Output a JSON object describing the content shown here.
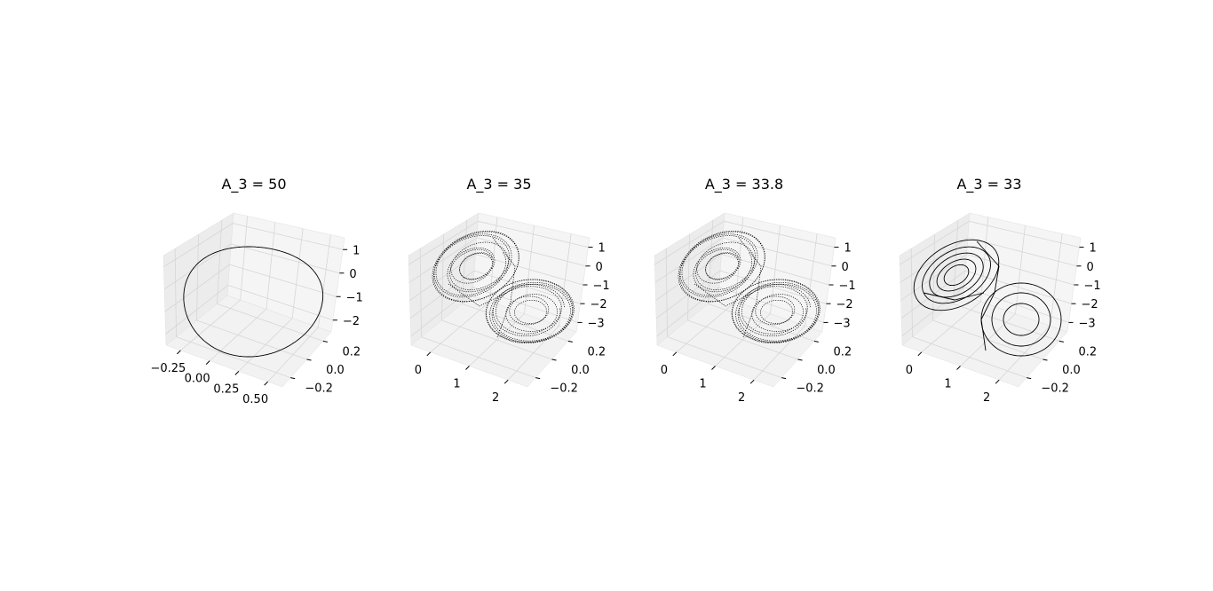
{
  "chart_data": [
    {
      "type": "line",
      "title": "A_3 = 50",
      "x_ticks": [
        "−0.25",
        "0.00",
        "0.25",
        "0.50"
      ],
      "y_ticks": [
        "−0.2",
        "0.0",
        "0.2"
      ],
      "z_ticks": [
        "1",
        "0",
        "−1",
        "−2"
      ],
      "attractor": "limit-cycle",
      "line_color": "#000000"
    },
    {
      "type": "line",
      "title": "A_3 = 35",
      "x_ticks": [
        "0",
        "1",
        "2"
      ],
      "y_ticks": [
        "−0.2",
        "0.0",
        "0.2"
      ],
      "z_ticks": [
        "1",
        "0",
        "−1",
        "−2",
        "−3"
      ],
      "attractor": "chaotic double-scroll",
      "line_color": "#000000"
    },
    {
      "type": "line",
      "title": "A_3 = 33.8",
      "x_ticks": [
        "0",
        "1",
        "2"
      ],
      "y_ticks": [
        "−0.2",
        "0.0",
        "0.2"
      ],
      "z_ticks": [
        "1",
        "0",
        "−1",
        "−2",
        "−3"
      ],
      "attractor": "chaotic double-scroll",
      "line_color": "#000000"
    },
    {
      "type": "line",
      "title": "A_3 = 33",
      "x_ticks": [
        "0",
        "1",
        "2"
      ],
      "y_ticks": [
        "−0.2",
        "0.0",
        "0.2"
      ],
      "z_ticks": [
        "1",
        "0",
        "−1",
        "−2",
        "−3"
      ],
      "attractor": "periodic double-scroll",
      "line_color": "#000000"
    }
  ]
}
